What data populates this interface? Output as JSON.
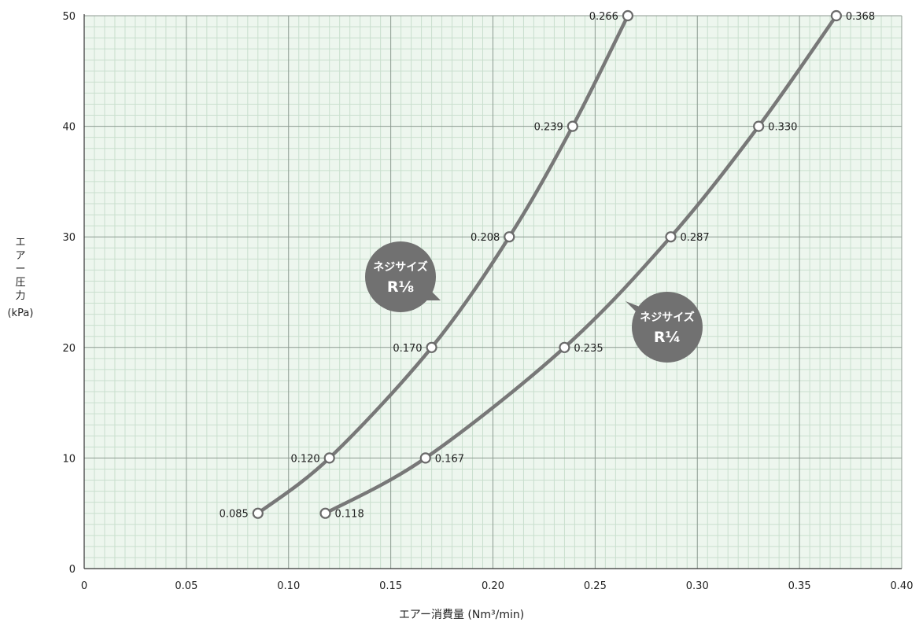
{
  "chart_data": {
    "type": "line",
    "xlabel": "エアー消費量 (Nm³/min)",
    "ylabel": [
      "エ",
      "ア",
      "ー",
      "圧",
      "力",
      "(kPa)"
    ],
    "xlim": [
      0,
      0.4
    ],
    "ylim": [
      0,
      50
    ],
    "x_ticks": [
      "0",
      "0.05",
      "0.10",
      "0.15",
      "0.20",
      "0.25",
      "0.30",
      "0.35",
      "0.40"
    ],
    "y_ticks": [
      "0",
      "10",
      "20",
      "30",
      "40",
      "50"
    ],
    "grid": true,
    "background_color": "#edf6ee",
    "minor_grid_color": "#c9dfce",
    "major_grid_color": "#8c9a90",
    "series": [
      {
        "name": "ネジサイズ R1/8",
        "bubble_line1": "ネジサイズ",
        "bubble_line2": "R⅛",
        "points": [
          {
            "x": 0.085,
            "y": 5,
            "label": "0.085"
          },
          {
            "x": 0.12,
            "y": 10,
            "label": "0.120"
          },
          {
            "x": 0.17,
            "y": 20,
            "label": "0.170"
          },
          {
            "x": 0.208,
            "y": 30,
            "label": "0.208"
          },
          {
            "x": 0.239,
            "y": 40,
            "label": "0.239"
          },
          {
            "x": 0.266,
            "y": 50,
            "label": "0.266"
          }
        ]
      },
      {
        "name": "ネジサイズ R1/4",
        "bubble_line1": "ネジサイズ",
        "bubble_line2": "R¼",
        "points": [
          {
            "x": 0.118,
            "y": 5,
            "label": "0.118"
          },
          {
            "x": 0.167,
            "y": 10,
            "label": "0.167"
          },
          {
            "x": 0.235,
            "y": 20,
            "label": "0.235"
          },
          {
            "x": 0.287,
            "y": 30,
            "label": "0.287"
          },
          {
            "x": 0.33,
            "y": 40,
            "label": "0.330"
          },
          {
            "x": 0.368,
            "y": 50,
            "label": "0.368"
          }
        ]
      }
    ],
    "line_color": "#787878",
    "bubble_color": "#717171"
  }
}
